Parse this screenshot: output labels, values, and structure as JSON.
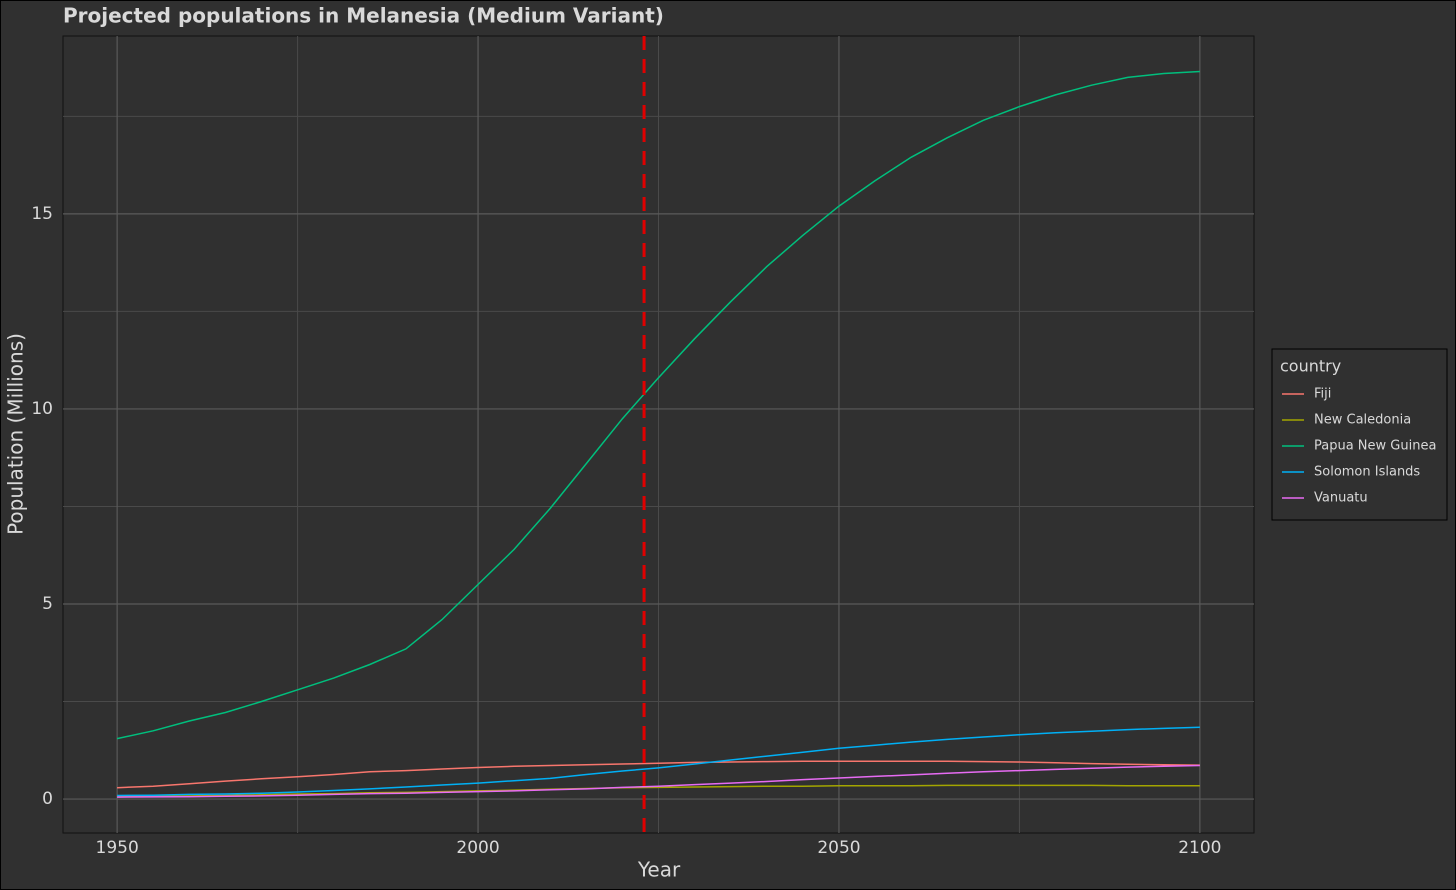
{
  "chart_data": {
    "type": "line",
    "title": "Projected populations in Melanesia (Medium Variant)",
    "x_label": "Year",
    "y_label": "Population (Millions)",
    "legend_title": "country",
    "legend_position": "right",
    "x": [
      1950,
      1955,
      1960,
      1965,
      1970,
      1975,
      1980,
      1985,
      1990,
      1995,
      2000,
      2005,
      2010,
      2015,
      2020,
      2025,
      2030,
      2035,
      2040,
      2045,
      2050,
      2055,
      2060,
      2065,
      2070,
      2075,
      2080,
      2085,
      2090,
      2095,
      2100
    ],
    "series": [
      {
        "name": "Fiji",
        "color": "#F8766D",
        "values": [
          0.29,
          0.33,
          0.39,
          0.46,
          0.52,
          0.57,
          0.63,
          0.7,
          0.73,
          0.77,
          0.81,
          0.84,
          0.86,
          0.88,
          0.9,
          0.92,
          0.94,
          0.95,
          0.96,
          0.97,
          0.97,
          0.97,
          0.97,
          0.97,
          0.96,
          0.95,
          0.93,
          0.91,
          0.89,
          0.88,
          0.87
        ]
      },
      {
        "name": "New Caledonia",
        "color": "#A3A500",
        "values": [
          0.06,
          0.07,
          0.08,
          0.09,
          0.11,
          0.13,
          0.14,
          0.16,
          0.17,
          0.19,
          0.21,
          0.23,
          0.25,
          0.27,
          0.29,
          0.3,
          0.31,
          0.32,
          0.33,
          0.33,
          0.34,
          0.34,
          0.34,
          0.35,
          0.35,
          0.35,
          0.35,
          0.35,
          0.34,
          0.34,
          0.34
        ]
      },
      {
        "name": "Papua New Guinea",
        "color": "#00BF7D",
        "values": [
          1.55,
          1.75,
          2.0,
          2.22,
          2.5,
          2.8,
          3.1,
          3.45,
          3.85,
          4.6,
          5.5,
          6.4,
          7.45,
          8.6,
          9.75,
          10.8,
          11.8,
          12.75,
          13.65,
          14.45,
          15.2,
          15.85,
          16.45,
          16.95,
          17.4,
          17.75,
          18.05,
          18.3,
          18.5,
          18.6,
          18.65
        ]
      },
      {
        "name": "Solomon Islands",
        "color": "#00B0F6",
        "values": [
          0.09,
          0.1,
          0.12,
          0.13,
          0.15,
          0.18,
          0.22,
          0.26,
          0.31,
          0.36,
          0.41,
          0.47,
          0.53,
          0.63,
          0.72,
          0.8,
          0.9,
          1.0,
          1.1,
          1.2,
          1.3,
          1.38,
          1.46,
          1.53,
          1.59,
          1.65,
          1.7,
          1.74,
          1.78,
          1.81,
          1.84
        ]
      },
      {
        "name": "Vanuatu",
        "color": "#E76BF3",
        "values": [
          0.05,
          0.055,
          0.06,
          0.07,
          0.08,
          0.1,
          0.12,
          0.14,
          0.15,
          0.17,
          0.19,
          0.21,
          0.24,
          0.26,
          0.3,
          0.33,
          0.37,
          0.41,
          0.45,
          0.5,
          0.54,
          0.58,
          0.62,
          0.66,
          0.7,
          0.73,
          0.76,
          0.79,
          0.82,
          0.84,
          0.86
        ]
      }
    ],
    "xlim": [
      1942.5,
      2107.5
    ],
    "xticks": [
      1950,
      2000,
      2050,
      2100
    ],
    "x_minor_ticks": [
      1975,
      2025,
      2075
    ],
    "ylim": [
      -0.87,
      19.56
    ],
    "yticks": [
      0,
      5,
      10,
      15
    ],
    "y_minor_ticks": [
      2.5,
      7.5,
      12.5,
      17.5
    ],
    "grid": true,
    "vline": {
      "x": 2023,
      "color": "#e00000"
    }
  }
}
